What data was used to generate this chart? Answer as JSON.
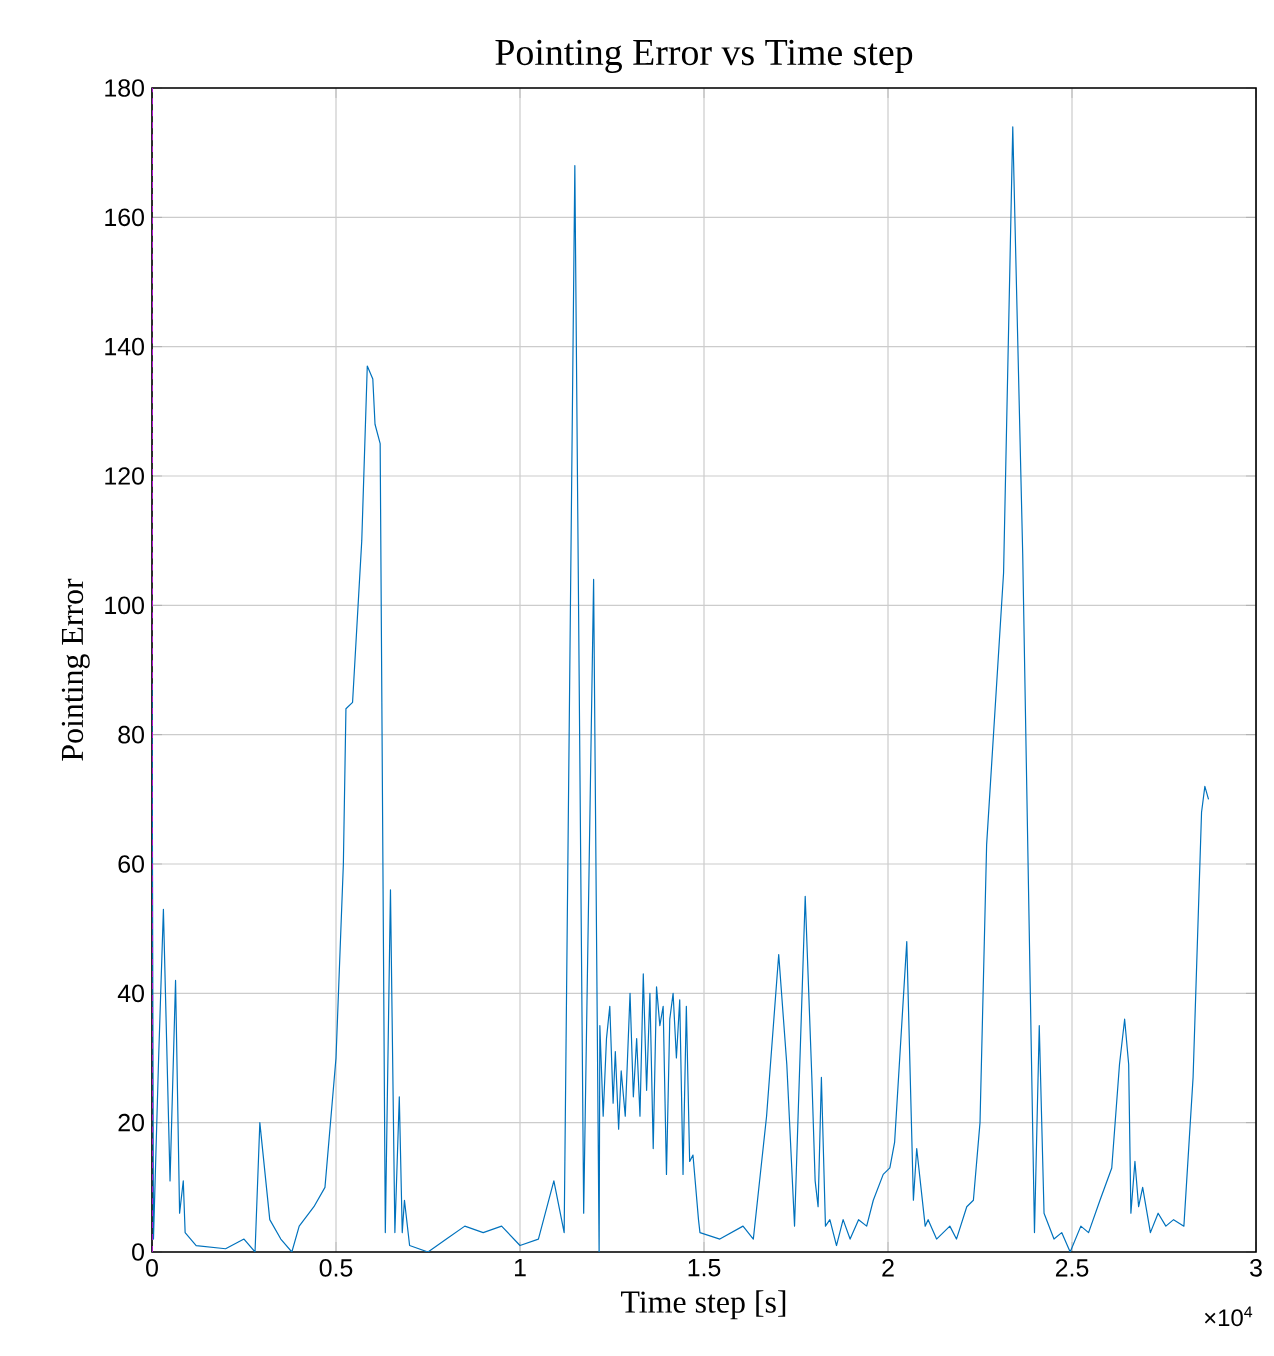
{
  "chart_data": {
    "type": "line",
    "title": "Pointing Error vs Time step",
    "xlabel": "Time step [s]",
    "ylabel": "Pointing Error",
    "annotations": [
      "×10$^{4}$"
    ],
    "xlim": [
      0,
      3
    ],
    "ylim": [
      0,
      180
    ],
    "xticks": [
      0,
      0.5,
      1,
      1.5,
      2,
      2.5,
      3
    ],
    "yticks": [
      0,
      20,
      40,
      60,
      80,
      100,
      120,
      140,
      160,
      180
    ],
    "grid": true,
    "marker": "none",
    "line_style": "solid",
    "ref_lines": [
      {
        "axis": "x",
        "value": 0,
        "color": "#b010d0",
        "line_style": "dashed"
      }
    ],
    "series": [
      {
        "color": "#0072bd",
        "x": [
          0,
          0.004,
          0.018,
          0.031,
          0.049,
          0.064,
          0.075,
          0.085,
          0.09,
          0.12,
          0.2,
          0.25,
          0.28,
          0.293,
          0.32,
          0.35,
          0.38,
          0.4,
          0.44,
          0.47,
          0.5,
          0.52,
          0.527,
          0.545,
          0.57,
          0.585,
          0.6,
          0.606,
          0.62,
          0.634,
          0.648,
          0.66,
          0.672,
          0.68,
          0.686,
          0.7,
          0.75,
          0.8,
          0.85,
          0.9,
          0.95,
          1.0,
          1.05,
          1.092,
          1.12,
          1.149,
          1.173,
          1.2,
          1.215,
          1.217,
          1.226,
          1.235,
          1.244,
          1.253,
          1.259,
          1.268,
          1.275,
          1.286,
          1.299,
          1.308,
          1.317,
          1.326,
          1.335,
          1.344,
          1.353,
          1.362,
          1.371,
          1.38,
          1.389,
          1.398,
          1.407,
          1.416,
          1.425,
          1.434,
          1.443,
          1.452,
          1.461,
          1.47,
          1.485,
          1.489,
          1.543,
          1.606,
          1.634,
          1.67,
          1.703,
          1.725,
          1.746,
          1.775,
          1.793,
          1.802,
          1.81,
          1.819,
          1.83,
          1.842,
          1.86,
          1.878,
          1.897,
          1.92,
          1.942,
          1.96,
          1.987,
          2.005,
          2.018,
          2.051,
          2.069,
          2.078,
          2.101,
          2.109,
          2.132,
          2.168,
          2.186,
          2.214,
          2.232,
          2.25,
          2.268,
          2.314,
          2.339,
          2.366,
          2.398,
          2.411,
          2.424,
          2.451,
          2.472,
          2.495,
          2.524,
          2.545,
          2.576,
          2.608,
          2.629,
          2.643,
          2.654,
          2.66,
          2.671,
          2.681,
          2.692,
          2.713,
          2.734,
          2.755,
          2.776,
          2.804,
          2.829,
          2.852,
          2.861,
          2.871
        ],
        "values": [
          88,
          2,
          30,
          53,
          11,
          42,
          6,
          11,
          3,
          1,
          0.5,
          2,
          0,
          20,
          5,
          2,
          0,
          4,
          7,
          10,
          30,
          60,
          84,
          85,
          110,
          137,
          135,
          128,
          125,
          3,
          56,
          3,
          24,
          3,
          8,
          1,
          0,
          2,
          4,
          3,
          4,
          1,
          2,
          11,
          3,
          168,
          6,
          104,
          0,
          35,
          21,
          33,
          38,
          23,
          31,
          19,
          28,
          21,
          40,
          24,
          33,
          21,
          43,
          25,
          40,
          16,
          41,
          35,
          38,
          12,
          36,
          40,
          30,
          39,
          12,
          38,
          14,
          15,
          5,
          3,
          2,
          4,
          2,
          21,
          46,
          29,
          4,
          55,
          27,
          11,
          7,
          27,
          4,
          5,
          1,
          5,
          2,
          5,
          4,
          8,
          12,
          13,
          17,
          48,
          8,
          16,
          4,
          5,
          2,
          4,
          2,
          7,
          8,
          20,
          63,
          105,
          174,
          108,
          3,
          35,
          6,
          2,
          3,
          0,
          4,
          3,
          8,
          13,
          29,
          36,
          29,
          6,
          14,
          7,
          10,
          3,
          6,
          4,
          5,
          4,
          27,
          68,
          72,
          70
        ]
      }
    ]
  }
}
